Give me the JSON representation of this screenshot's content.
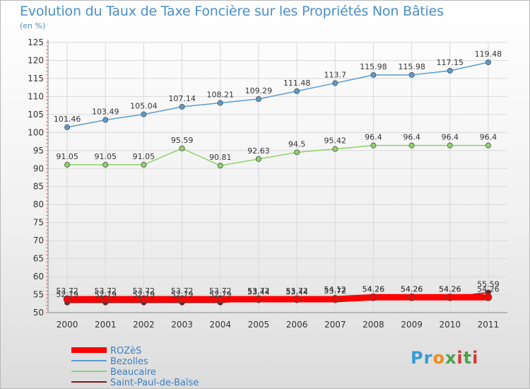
{
  "header": {
    "title": "Evolution du Taux de Taxe Foncière sur les Propriétés Non Bâties",
    "unit": "(en %)"
  },
  "logo": {
    "text": "Proxiti"
  },
  "chart_data": {
    "type": "line",
    "title": "Evolution du Taux de Taxe Foncière sur les Propriétés Non Bâties",
    "ylabel": "(en %)",
    "xlabel": "",
    "x": [
      "2000",
      "2001",
      "2002",
      "2003",
      "2004",
      "2005",
      "2006",
      "2007",
      "2008",
      "2009",
      "2010",
      "2011"
    ],
    "ylim": [
      50,
      125
    ],
    "yticks": [
      50,
      55,
      60,
      65,
      70,
      75,
      80,
      85,
      90,
      95,
      100,
      105,
      110,
      115,
      120,
      125
    ],
    "grid": true,
    "legend": "bottom-left",
    "series": [
      {
        "name": "ROZèS",
        "color": "#ff0000",
        "values": [
          53.72,
          53.72,
          53.72,
          53.72,
          53.72,
          53.72,
          53.72,
          53.72,
          54.26,
          54.26,
          54.26,
          54.26
        ],
        "labels": [
          "53.72",
          "53.72",
          "53.72",
          "53.72",
          "53.72",
          "53.72",
          "53.72",
          "53.72",
          "54.26",
          "54.26",
          "54.26",
          "54.26"
        ]
      },
      {
        "name": "Bezolles",
        "color": "#5b9bd0",
        "values": [
          101.46,
          103.49,
          105.04,
          107.14,
          108.21,
          109.29,
          111.48,
          113.7,
          115.98,
          115.98,
          117.15,
          119.48
        ],
        "labels": [
          "101.46",
          "103.49",
          "105.04",
          "107.14",
          "108.21",
          "109.29",
          "111.48",
          "113.7",
          "115.98",
          "115.98",
          "117.15",
          "119.48"
        ]
      },
      {
        "name": "Beaucaire",
        "color": "#8fd26a",
        "values": [
          91.05,
          91.05,
          91.05,
          95.59,
          90.81,
          92.63,
          94.5,
          95.42,
          96.4,
          96.4,
          96.4,
          96.4
        ],
        "labels": [
          "91.05",
          "91.05",
          "91.05",
          "95.59",
          "90.81",
          "92.63",
          "94.5",
          "95.42",
          "96.4",
          "96.4",
          "96.4",
          "96.4"
        ]
      },
      {
        "name": "Saint-Paul-de-Baïse",
        "color": "#7a1a1a",
        "values": [
          52.79,
          52.79,
          52.79,
          52.79,
          52.79,
          53.44,
          53.44,
          54.12,
          54.26,
          54.26,
          54.26,
          55.59
        ],
        "labels": [
          "52.79",
          "52.79",
          "52.79",
          "52.79",
          "52.79",
          "53.44",
          "53.44",
          "54.12",
          "54.26",
          "54.26",
          "54.26",
          "55.59"
        ]
      }
    ]
  }
}
